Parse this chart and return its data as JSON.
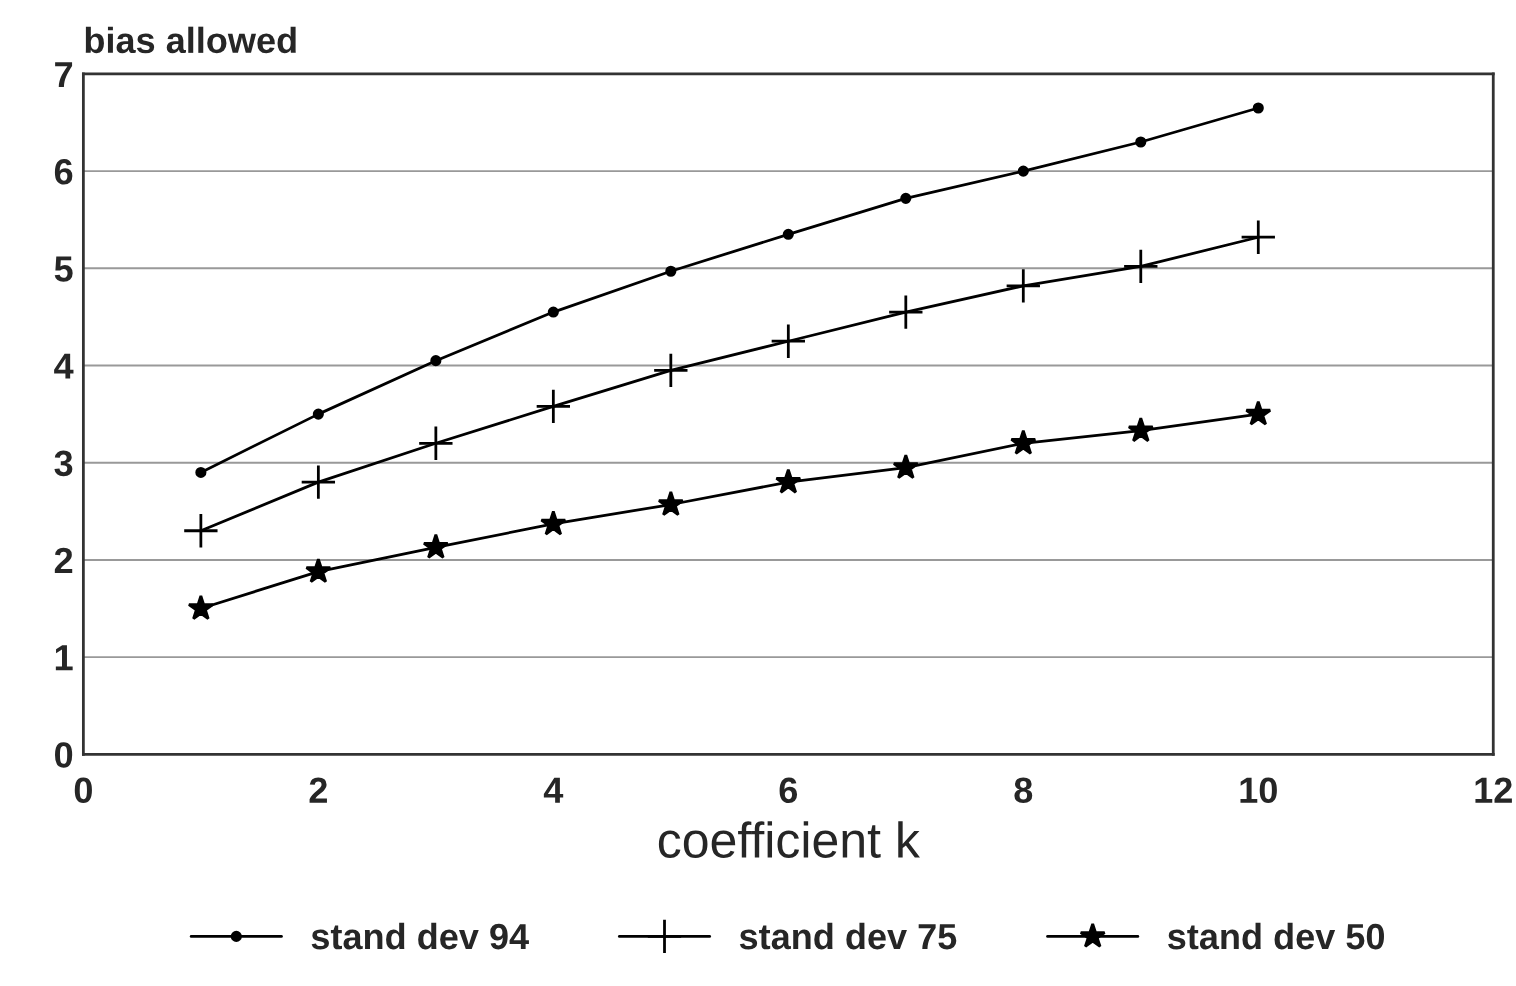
{
  "chart_data": {
    "type": "line",
    "ylabel": "bias allowed",
    "xlabel": "coefficient k",
    "x": [
      1,
      2,
      3,
      4,
      5,
      6,
      7,
      8,
      9,
      10
    ],
    "series": [
      {
        "name": "stand dev 94",
        "color": "#000000",
        "marker": "circle",
        "values": [
          2.9,
          3.5,
          4.05,
          4.55,
          4.97,
          5.35,
          5.72,
          6.0,
          6.3,
          6.65
        ]
      },
      {
        "name": "stand dev 75",
        "color": "#000000",
        "marker": "cross",
        "values": [
          2.3,
          2.8,
          3.2,
          3.58,
          3.95,
          4.25,
          4.55,
          4.82,
          5.02,
          5.32
        ]
      },
      {
        "name": "stand dev 50",
        "color": "#000000",
        "marker": "star",
        "values": [
          1.5,
          1.88,
          2.13,
          2.37,
          2.57,
          2.8,
          2.95,
          3.2,
          3.33,
          3.5
        ]
      }
    ],
    "xlim": [
      0,
      12
    ],
    "xticks": [
      0,
      2,
      4,
      6,
      8,
      10,
      12
    ],
    "ylim": [
      0,
      7
    ],
    "yticks": [
      0,
      1,
      2,
      3,
      4,
      5,
      6,
      7
    ],
    "grid": "y",
    "legend": "bottom",
    "line_style": "solid"
  }
}
